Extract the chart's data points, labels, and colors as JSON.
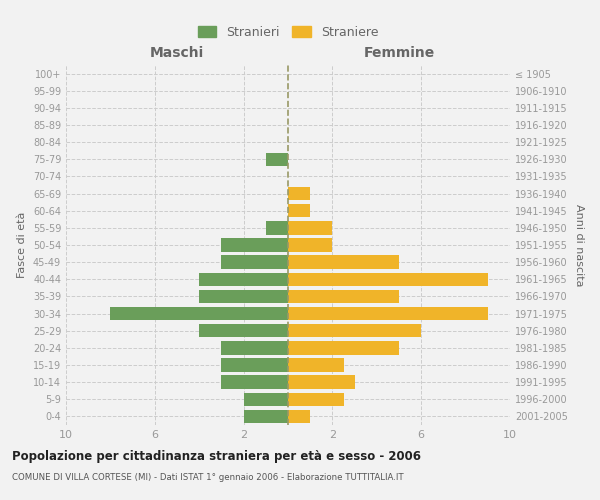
{
  "age_groups": [
    "0-4",
    "5-9",
    "10-14",
    "15-19",
    "20-24",
    "25-29",
    "30-34",
    "35-39",
    "40-44",
    "45-49",
    "50-54",
    "55-59",
    "60-64",
    "65-69",
    "70-74",
    "75-79",
    "80-84",
    "85-89",
    "90-94",
    "95-99",
    "100+"
  ],
  "birth_years": [
    "2001-2005",
    "1996-2000",
    "1991-1995",
    "1986-1990",
    "1981-1985",
    "1976-1980",
    "1971-1975",
    "1966-1970",
    "1961-1965",
    "1956-1960",
    "1951-1955",
    "1946-1950",
    "1941-1945",
    "1936-1940",
    "1931-1935",
    "1926-1930",
    "1921-1925",
    "1916-1920",
    "1911-1915",
    "1906-1910",
    "≤ 1905"
  ],
  "males": [
    2,
    2,
    3,
    3,
    3,
    4,
    8,
    4,
    4,
    3,
    3,
    1,
    0,
    0,
    0,
    1,
    0,
    0,
    0,
    0,
    0
  ],
  "females": [
    1,
    2.5,
    3,
    2.5,
    5,
    6,
    9,
    5,
    9,
    5,
    2,
    2,
    1,
    1,
    0,
    0,
    0,
    0,
    0,
    0,
    0
  ],
  "male_color": "#6a9e5a",
  "female_color": "#f0b429",
  "background_color": "#f2f2f2",
  "title": "Popolazione per cittadinanza straniera per età e sesso - 2006",
  "subtitle": "COMUNE DI VILLA CORTESE (MI) - Dati ISTAT 1° gennaio 2006 - Elaborazione TUTTITALIA.IT",
  "xlabel_left": "Maschi",
  "xlabel_right": "Femmine",
  "ylabel_left": "Fasce di età",
  "ylabel_right": "Anni di nascita",
  "legend_male": "Stranieri",
  "legend_female": "Straniere",
  "xlim": 10,
  "grid_color": "#cccccc",
  "center_line_color": "#999966",
  "tick_color": "#999999",
  "label_color": "#666666"
}
